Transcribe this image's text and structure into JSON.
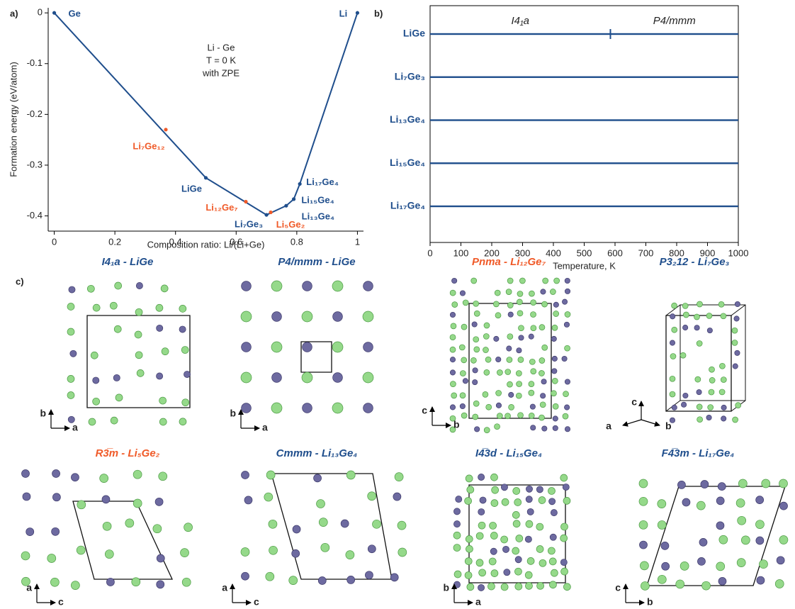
{
  "chart_data": [
    {
      "type": "line",
      "label": "a)",
      "annotation": [
        "Li - Ge",
        "T = 0 K",
        "with ZPE"
      ],
      "xlabel": "Composition ratio: Li/(Li+Ge)",
      "ylabel": "Formation energy  (eV/atom)",
      "xlim": [
        -0.02,
        1.02
      ],
      "ylim": [
        -0.43,
        0.01
      ],
      "xticks": [
        0,
        0.2,
        0.4,
        0.6,
        0.8,
        1
      ],
      "yticks": [
        0,
        -0.1,
        -0.2,
        -0.3,
        -0.4
      ],
      "series": [
        {
          "color": "#1f4e8c",
          "line": true,
          "x": [
            0,
            0.5,
            0.7,
            0.765,
            0.79,
            0.81,
            1
          ],
          "values": [
            0,
            -0.325,
            -0.398,
            -0.38,
            -0.367,
            -0.337,
            0
          ],
          "point_labels": [
            "Ge",
            "LiGe",
            "Li₇Ge₃",
            "Li₁₃Ge₄",
            "Li₁₅Ge₄",
            "Li₁₇Ge₄",
            "Li"
          ]
        },
        {
          "color": "#f05a28",
          "line": false,
          "x": [
            0.368,
            0.632,
            0.714
          ],
          "values": [
            -0.23,
            -0.372,
            -0.393
          ],
          "point_labels": [
            "Li₇Ge₁₂",
            "Li₁₂Ge₇",
            "Li₅Ge₂"
          ]
        }
      ]
    },
    {
      "type": "bar",
      "orientation": "horizontal",
      "label": "b)",
      "categories": [
        "LiGe",
        "Li₇Ge₃",
        "Li₁₃Ge₄",
        "Li₁₅Ge₄",
        "Li₁₇Ge₄"
      ],
      "values": [
        1000,
        1000,
        1000,
        1000,
        1000
      ],
      "color": "#1f4e8c",
      "xlim": [
        0,
        1000
      ],
      "xticks": [
        0,
        100,
        200,
        300,
        400,
        500,
        600,
        700,
        800,
        900,
        1000
      ],
      "xlabel": "Temperature, K",
      "transition": {
        "value": 585,
        "phases": [
          "I4₁a",
          "P4/mmm"
        ]
      }
    }
  ],
  "structures": {
    "label": "c)",
    "items": [
      {
        "title": "I4₁a - LiGe",
        "color": "#1f4e8c",
        "axes": [
          "b",
          "a"
        ]
      },
      {
        "title": "P4/mmm - LiGe",
        "color": "#1f4e8c",
        "axes": [
          "b",
          "a"
        ]
      },
      {
        "title": "Pnma - Li₁₂Ge₇",
        "color": "#f05a28",
        "axes": [
          "c",
          "b"
        ]
      },
      {
        "title": "P3₂12 - Li₇Ge₃",
        "color": "#1f4e8c",
        "axes": [
          "c",
          "a",
          "b"
        ]
      },
      {
        "title": "R3̅m - Li₅Ge₂",
        "color": "#f05a28",
        "axes": [
          "a",
          "c"
        ]
      },
      {
        "title": "Cmmm - Li₁₃Ge₄",
        "color": "#1f4e8c",
        "axes": [
          "a",
          "c"
        ]
      },
      {
        "title": "I4̅3d - Li₁₅Ge₄",
        "color": "#1f4e8c",
        "axes": [
          "b",
          "a"
        ]
      },
      {
        "title": "F4̅3m - Li₁₇Ge₄",
        "color": "#1f4e8c",
        "axes": [
          "c",
          "b"
        ]
      }
    ]
  }
}
